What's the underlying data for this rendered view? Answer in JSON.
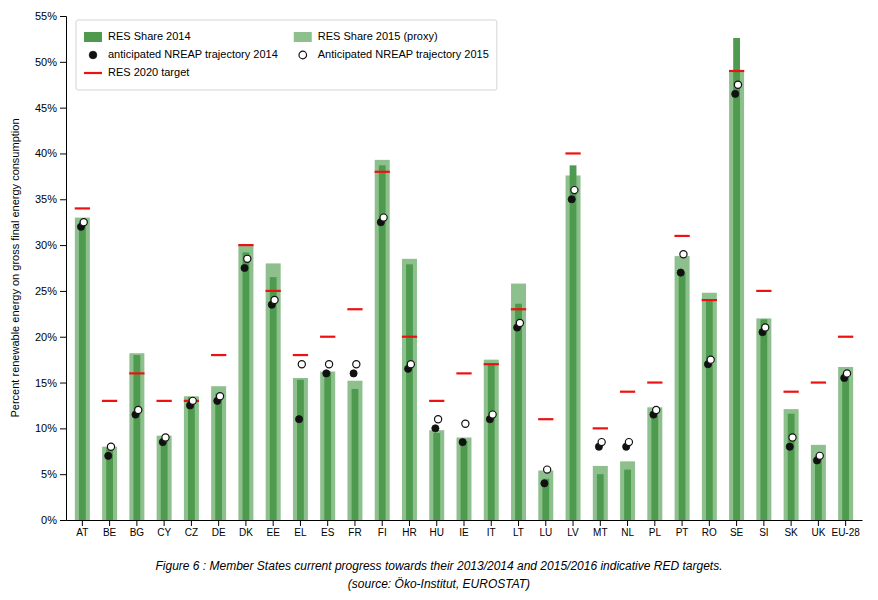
{
  "chart_data": {
    "type": "bar",
    "y_label": "Percent renewable energy on gross final energy consumption",
    "annotations": [
      "Figure 6 : Member States current progress towards their 2013/2014 and 2015/2016 indicative RED targets.",
      "(source: Öko-Institut, EUROSTAT)"
    ],
    "categories": [
      "AT",
      "BE",
      "BG",
      "CY",
      "CZ",
      "DE",
      "DK",
      "EE",
      "EL",
      "ES",
      "FR",
      "FI",
      "HR",
      "HU",
      "IE",
      "IT",
      "LT",
      "LU",
      "LV",
      "MT",
      "NL",
      "PL",
      "PT",
      "RO",
      "SE",
      "SI",
      "SK",
      "UK",
      "EU-28"
    ],
    "series": [
      {
        "name": "RES Share 2014",
        "type": "bar",
        "color": "#4e9a4e",
        "values": [
          32.6,
          7.9,
          18.0,
          8.9,
          13.4,
          13.8,
          29.2,
          26.5,
          15.3,
          16.2,
          14.3,
          38.7,
          27.9,
          9.5,
          8.6,
          17.1,
          23.6,
          4.5,
          38.7,
          5.0,
          5.5,
          11.4,
          27.0,
          24.0,
          52.6,
          21.9,
          11.6,
          7.0,
          16.0
        ]
      },
      {
        "name": "RES Share 2015 (proxy)",
        "type": "bar",
        "color": "#8ec08e",
        "values": [
          33.0,
          8.0,
          18.2,
          9.2,
          13.5,
          14.6,
          30.0,
          28.0,
          15.5,
          16.2,
          15.2,
          39.3,
          28.5,
          9.8,
          9.0,
          17.5,
          25.8,
          5.4,
          37.6,
          5.9,
          6.4,
          12.3,
          28.8,
          24.8,
          49.0,
          22.0,
          12.1,
          8.2,
          16.7
        ]
      },
      {
        "name": "anticipated NREAP trajectory 2014",
        "type": "scatter",
        "marker": "circle",
        "color": "#111111",
        "values": [
          32.0,
          7.0,
          11.5,
          8.5,
          12.5,
          13.0,
          27.5,
          23.5,
          11.0,
          16.0,
          16.0,
          32.5,
          16.5,
          10.0,
          8.5,
          11.0,
          21.0,
          4.0,
          35.0,
          8.0,
          8.0,
          11.5,
          27.0,
          17.0,
          46.5,
          20.5,
          8.0,
          6.5,
          15.5
        ]
      },
      {
        "name": "Anticipated NREAP trajectory 2015",
        "type": "scatter",
        "marker": "open-circle",
        "color": "#111111",
        "values": [
          32.5,
          8.0,
          12.0,
          9.0,
          13.0,
          13.5,
          28.5,
          24.0,
          17.0,
          17.0,
          17.0,
          33.0,
          17.0,
          11.0,
          10.5,
          11.5,
          21.5,
          5.5,
          36.0,
          8.5,
          8.5,
          12.0,
          29.0,
          17.5,
          47.5,
          21.0,
          9.0,
          7.0,
          16.0
        ]
      },
      {
        "name": "RES 2020 target",
        "type": "target",
        "color": "#ee1111",
        "values": [
          34.0,
          13.0,
          16.0,
          13.0,
          13.0,
          18.0,
          30.0,
          25.0,
          18.0,
          20.0,
          23.0,
          38.0,
          20.0,
          13.0,
          16.0,
          17.0,
          23.0,
          11.0,
          40.0,
          10.0,
          14.0,
          15.0,
          31.0,
          24.0,
          49.0,
          25.0,
          14.0,
          15.0,
          20.0
        ]
      }
    ],
    "ylim": [
      0,
      55
    ],
    "yticks": [
      {
        "value": 0,
        "label": "0%"
      },
      {
        "value": 5,
        "label": "5%"
      },
      {
        "value": 10,
        "label": "10%"
      },
      {
        "value": 15,
        "label": "15%"
      },
      {
        "value": 20,
        "label": "20%"
      },
      {
        "value": 25,
        "label": "25%"
      },
      {
        "value": 30,
        "label": "30%"
      },
      {
        "value": 35,
        "label": "35%"
      },
      {
        "value": 40,
        "label": "40%"
      },
      {
        "value": 45,
        "label": "45%"
      },
      {
        "value": 50,
        "label": "50%"
      },
      {
        "value": 55,
        "label": "55%"
      }
    ],
    "grid": false,
    "legend": "upper left"
  }
}
